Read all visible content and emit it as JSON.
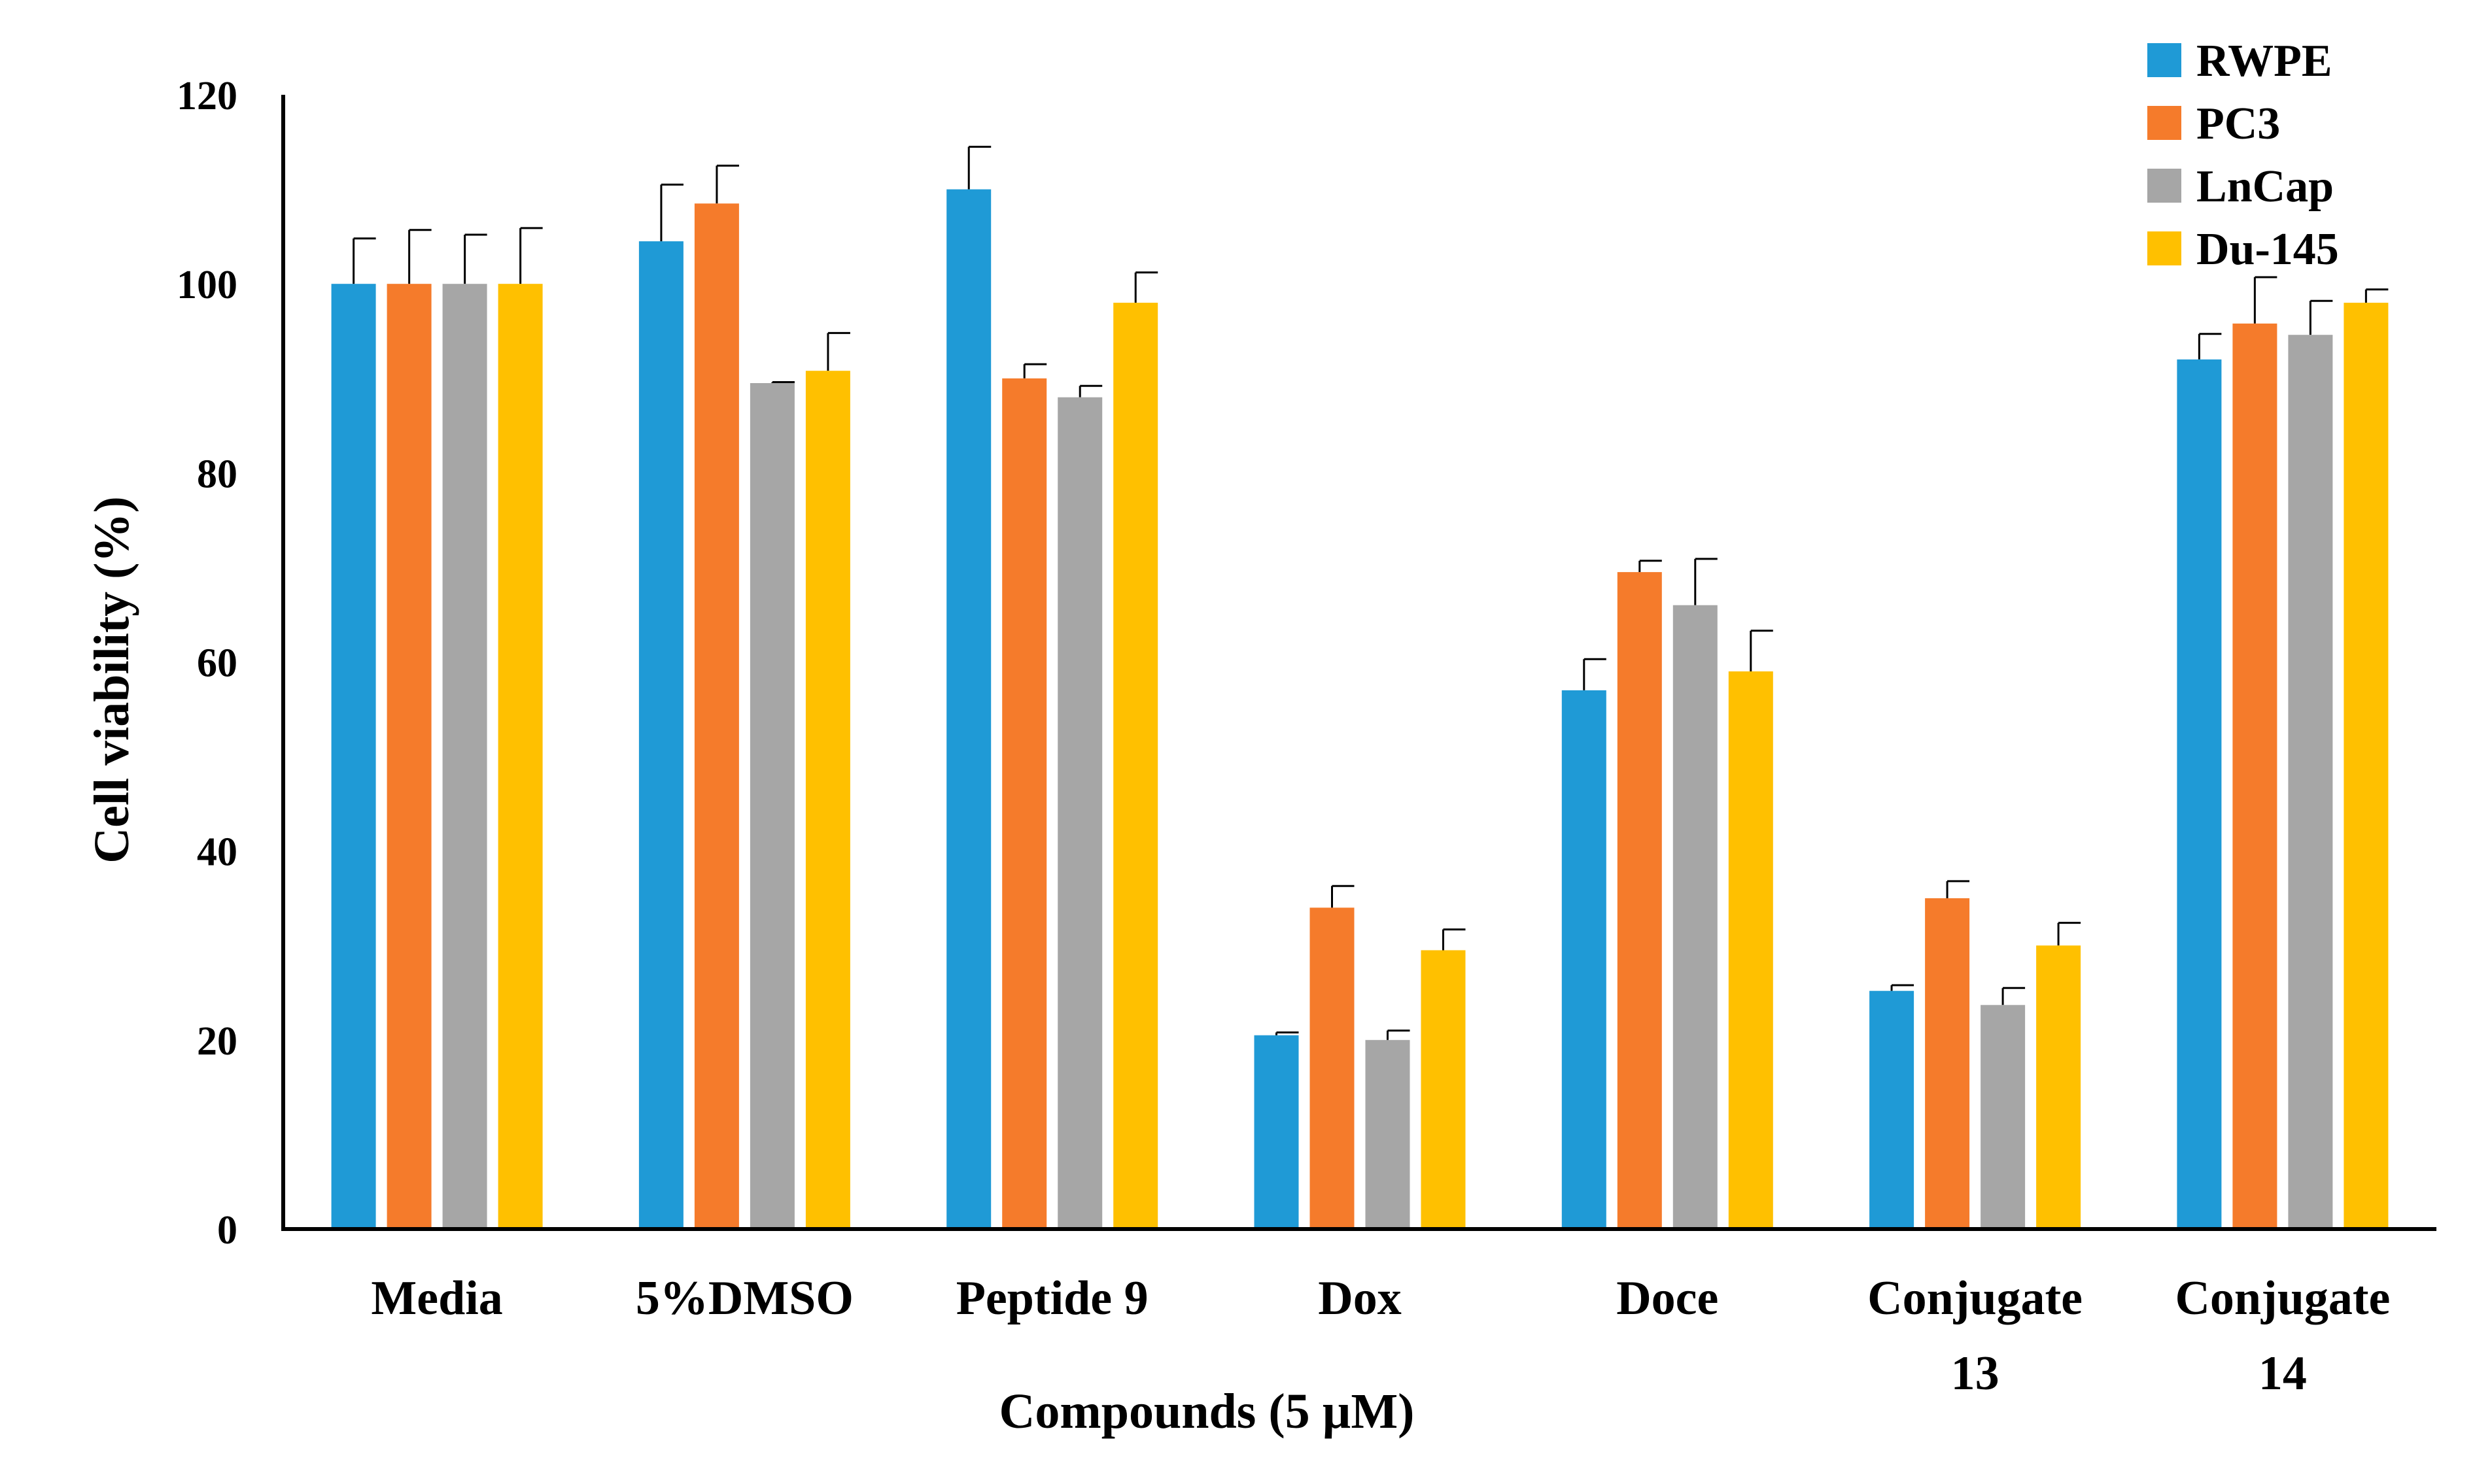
{
  "chart_data": {
    "type": "bar",
    "xlabel": "Compounds (5 µM)",
    "ylabel": "Cell viability (%)",
    "ylim": [
      0,
      120
    ],
    "yticks": [
      0,
      20,
      40,
      60,
      80,
      100,
      120
    ],
    "grid": false,
    "legend_position": "top-right",
    "categories": [
      [
        "Media"
      ],
      [
        "5%DMSO"
      ],
      [
        "Peptide 9"
      ],
      [
        "Dox"
      ],
      [
        "Doce"
      ],
      [
        "Conjugate",
        "13"
      ],
      [
        "Conjugate",
        "14"
      ]
    ],
    "series": [
      {
        "name": "RWPE",
        "color": "#1f9ad6",
        "values": [
          100,
          104.5,
          110,
          20.5,
          57,
          25.2,
          92
        ],
        "errors": [
          4.8,
          6,
          4.5,
          0.3,
          3.3,
          0.6,
          2.7
        ]
      },
      {
        "name": "PC3",
        "color": "#f57b2b",
        "values": [
          100,
          108.5,
          90,
          34,
          69.5,
          35,
          95.8
        ],
        "errors": [
          5.7,
          4,
          1.5,
          2.3,
          1.2,
          1.8,
          4.9
        ]
      },
      {
        "name": "LnCap",
        "color": "#a6a6a6",
        "values": [
          100,
          89.5,
          88,
          20,
          66,
          23.7,
          94.6
        ],
        "errors": [
          5.2,
          0.1,
          1.2,
          1,
          4.9,
          1.8,
          3.6
        ]
      },
      {
        "name": "Du-145",
        "color": "#ffc000",
        "values": [
          100,
          90.8,
          98,
          29.5,
          59,
          30,
          98
        ],
        "errors": [
          5.9,
          4,
          3.2,
          2.2,
          4.3,
          2.4,
          1.4
        ]
      }
    ]
  }
}
